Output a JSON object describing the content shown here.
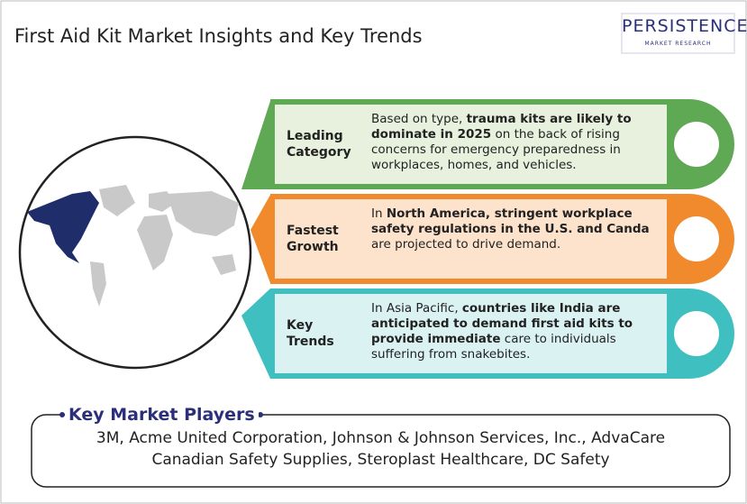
{
  "header": {
    "title": "First Aid Kit Market Insights and Key Trends"
  },
  "logo": {
    "name": "PERSISTENCE",
    "tagline": "MARKET RESEARCH"
  },
  "cards": [
    {
      "label": [
        "Leading",
        "Category"
      ],
      "segments": [
        {
          "text": "Based on type, ",
          "bold": false
        },
        {
          "text": "trauma kits are likely to dominate in 2025",
          "bold": true
        },
        {
          "text": " on the back of rising concerns for emergency preparedness in workplaces, homes, and vehicles.",
          "bold": false
        }
      ]
    },
    {
      "label": [
        "Fastest",
        "Growth"
      ],
      "segments": [
        {
          "text": "In ",
          "bold": false
        },
        {
          "text": "North America, stringent workplace safety regulations in the U.S. and Canda",
          "bold": true
        },
        {
          "text": " are projected to drive demand.",
          "bold": false
        }
      ]
    },
    {
      "label": [
        "Key",
        "Trends"
      ],
      "segments": [
        {
          "text": "In Asia Pacific, ",
          "bold": false
        },
        {
          "text": "countries like India are anticipated to demand first aid kits to provide immediate",
          "bold": true
        },
        {
          "text": " care to individuals suffering from snakebites.",
          "bold": false
        }
      ]
    }
  ],
  "players": {
    "title": "Key Market Players",
    "lines": [
      "3M, Acme United Corporation, Johnson & Johnson Services, Inc., AdvaCare",
      "Canadian Safety Supplies, Steroplast Healthcare, DC Safety"
    ]
  }
}
